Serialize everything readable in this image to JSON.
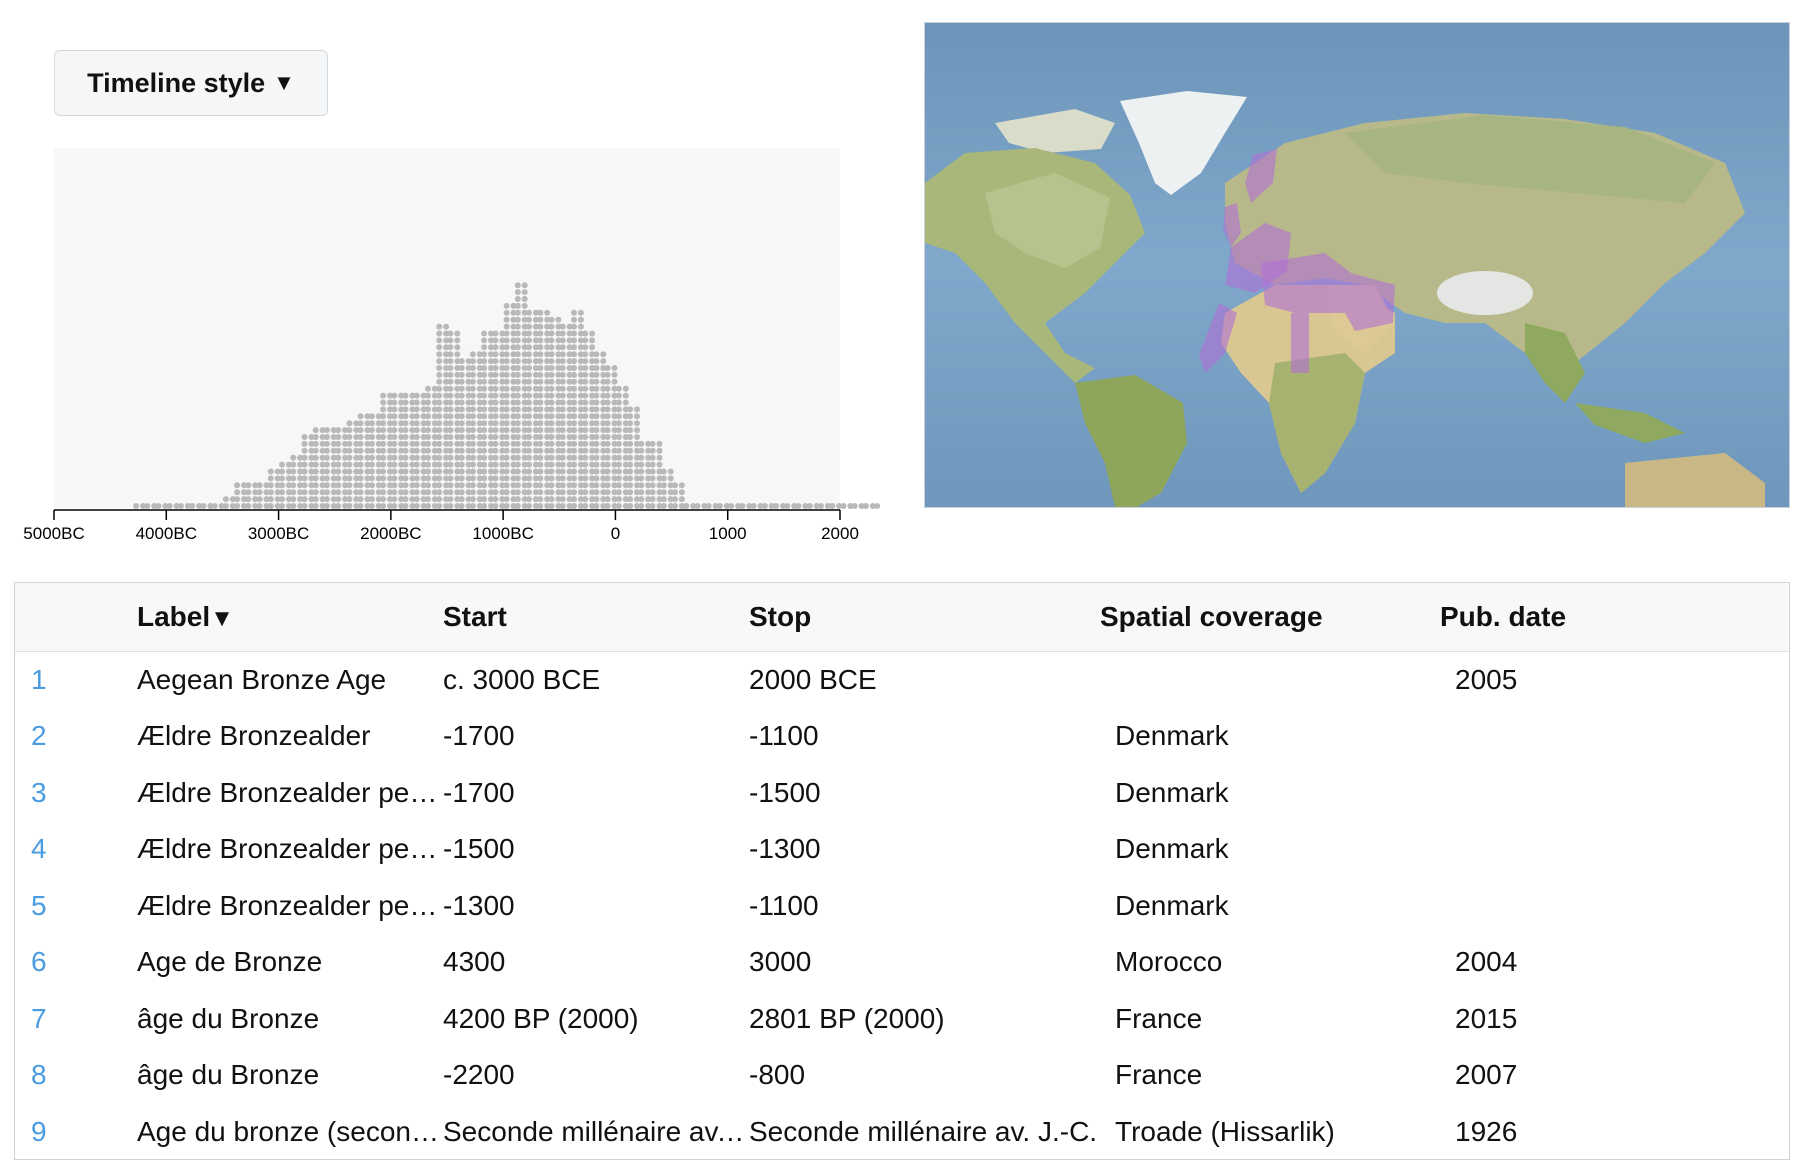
{
  "controls": {
    "timeline_style_label": "Timeline style",
    "caret": "▼"
  },
  "timeline": {
    "axis_ticks": [
      "5000BC",
      "4000BC",
      "3000BC",
      "2000BC",
      "1000BC",
      "0",
      "1000",
      "2000"
    ],
    "axis_tick_years": [
      -5000,
      -4000,
      -3000,
      -2000,
      -1000,
      0,
      1000,
      2000
    ],
    "bin_years": 100,
    "dot_color": "#b9b9b9",
    "bg_color": "#f7f7f7"
  },
  "chart_data": {
    "type": "dot-histogram",
    "x_range": [
      -5000,
      2000
    ],
    "bins_start": -4300,
    "bin_width": 100,
    "counts": [
      1,
      1,
      1,
      1,
      1,
      1,
      1,
      1,
      2,
      4,
      4,
      4,
      6,
      7,
      8,
      11,
      12,
      12,
      12,
      13,
      14,
      14,
      17,
      17,
      17,
      17,
      18,
      27,
      26,
      22,
      23,
      26,
      26,
      30,
      33,
      29,
      29,
      28,
      27,
      29,
      26,
      23,
      21,
      18,
      15,
      10,
      10,
      6,
      4,
      1,
      1,
      1,
      1,
      1,
      1,
      1,
      1,
      1,
      1,
      1,
      1,
      1,
      1,
      1,
      1,
      1,
      1,
      1,
      1,
      1,
      1,
      1,
      1
    ]
  },
  "map": {
    "ocean_color": "#7aa2c4",
    "land_color": "#c9c79a",
    "highlight_color": "#b16fd6"
  },
  "table": {
    "headers": [
      "Label",
      "Start",
      "Stop",
      "Spatial coverage",
      "Pub. date"
    ],
    "sort_caret": "▼",
    "rows": [
      {
        "n": "1",
        "label": "Aegean Bronze Age",
        "start": "c. 3000 BCE",
        "stop": "2000 BCE",
        "coverage": "",
        "pub": "2005"
      },
      {
        "n": "2",
        "label": "Ældre Bronzealder",
        "start": "-1700",
        "stop": "-1100",
        "coverage": "Denmark",
        "pub": ""
      },
      {
        "n": "3",
        "label": "Ældre Bronzealder periode II",
        "start": "-1700",
        "stop": "-1500",
        "coverage": "Denmark",
        "pub": ""
      },
      {
        "n": "4",
        "label": "Ældre Bronzealder periode III",
        "start": "-1500",
        "stop": "-1300",
        "coverage": "Denmark",
        "pub": ""
      },
      {
        "n": "5",
        "label": "Ældre Bronzealder periode IV",
        "start": "-1300",
        "stop": "-1100",
        "coverage": "Denmark",
        "pub": ""
      },
      {
        "n": "6",
        "label": "Age de Bronze",
        "start": "4300",
        "stop": "3000",
        "coverage": "Morocco",
        "pub": "2004"
      },
      {
        "n": "7",
        "label": "âge du Bronze",
        "start": "4200 BP (2000)",
        "stop": "2801 BP (2000)",
        "coverage": "France",
        "pub": "2015"
      },
      {
        "n": "8",
        "label": "âge du Bronze",
        "start": "-2200",
        "stop": "-800",
        "coverage": "France",
        "pub": "2007"
      },
      {
        "n": "9",
        "label": "Age du bronze (second millénaire)",
        "start": "Seconde millénaire av. J.-C.",
        "stop": "Seconde millénaire av. J.-C.",
        "coverage": "Troade (Hissarlik)",
        "pub": "1926"
      }
    ]
  }
}
